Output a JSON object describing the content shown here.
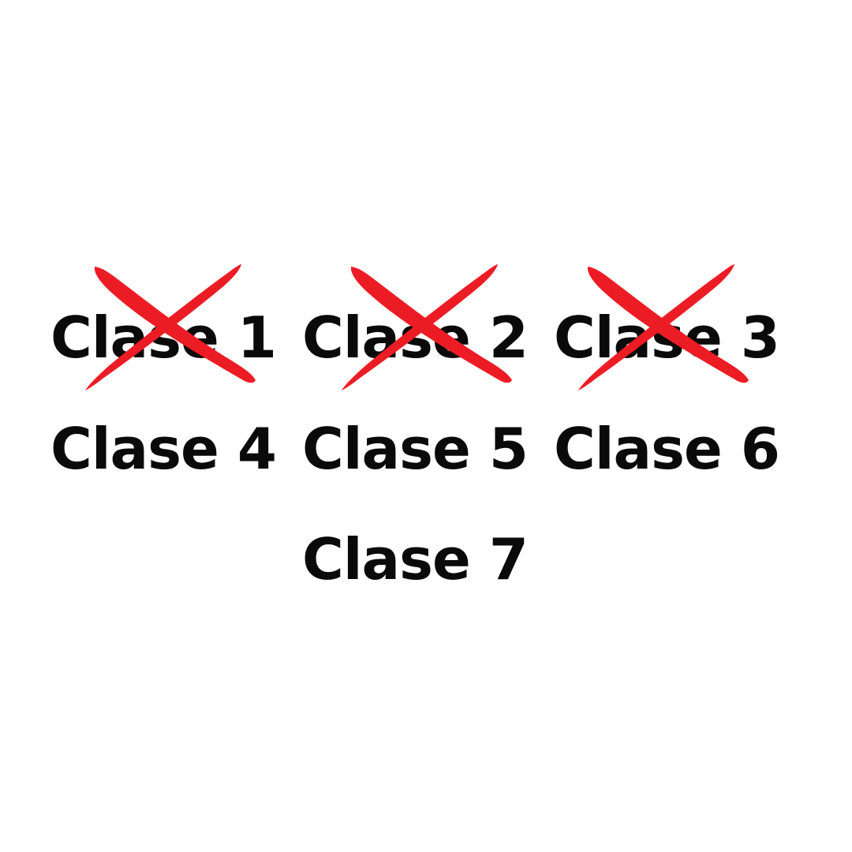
{
  "items": [
    {
      "label": "Clase 1",
      "crossed": true
    },
    {
      "label": "Clase 2",
      "crossed": true
    },
    {
      "label": "Clase 3",
      "crossed": true
    },
    {
      "label": "Clase 4",
      "crossed": false
    },
    {
      "label": "Clase 5",
      "crossed": false
    },
    {
      "label": "Clase 6",
      "crossed": false
    },
    {
      "label": "Clase 7",
      "crossed": false
    }
  ],
  "colors": {
    "background": "#ffffff",
    "text": "#0a0a0a",
    "cross": "#ec1c24"
  },
  "icons": {
    "cross": "red-x-mark-icon"
  }
}
